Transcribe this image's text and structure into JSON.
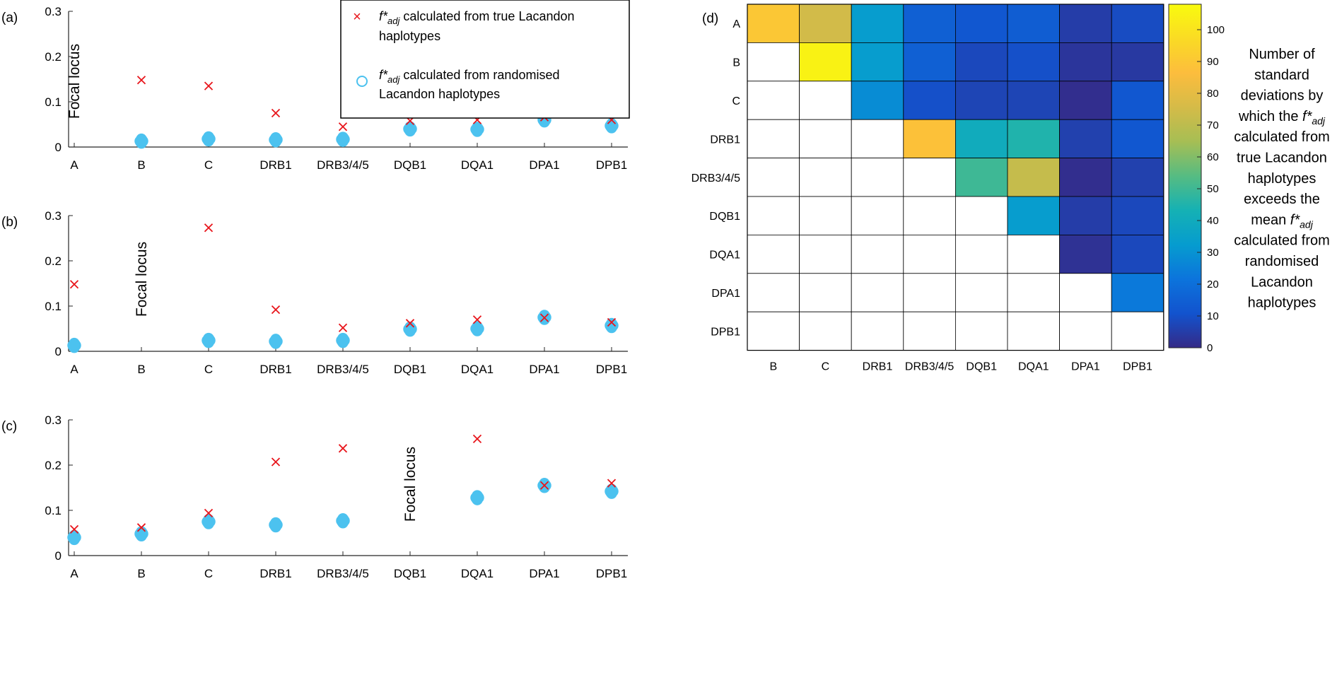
{
  "chart_data": [
    {
      "id": "a",
      "type": "scatter",
      "panel_label": "(a)",
      "focal_label": "Focal locus",
      "focal_index": 0,
      "categories": [
        "A",
        "B",
        "C",
        "DRB1",
        "DRB3/4/5",
        "DQB1",
        "DQA1",
        "DPA1",
        "DPB1"
      ],
      "ylim": [
        0,
        0.3
      ],
      "yticks": [
        "0",
        "0.1",
        "0.2",
        "0.3"
      ],
      "series": [
        {
          "name": "true",
          "marker": "x",
          "values": [
            null,
            0.148,
            0.135,
            0.075,
            0.045,
            0.058,
            0.06,
            0.066,
            0.06
          ]
        },
        {
          "name": "randomised",
          "marker": "o",
          "values": [
            null,
            0.013,
            0.018,
            0.016,
            0.017,
            0.04,
            0.039,
            0.06,
            0.047
          ]
        }
      ]
    },
    {
      "id": "b",
      "type": "scatter",
      "panel_label": "(b)",
      "focal_label": "Focal locus",
      "focal_index": 1,
      "categories": [
        "A",
        "B",
        "C",
        "DRB1",
        "DRB3/4/5",
        "DQB1",
        "DQA1",
        "DPA1",
        "DPB1"
      ],
      "ylim": [
        0,
        0.3
      ],
      "yticks": [
        "0",
        "0.1",
        "0.2",
        "0.3"
      ],
      "series": [
        {
          "name": "true",
          "marker": "x",
          "values": [
            0.148,
            null,
            0.273,
            0.092,
            0.052,
            0.062,
            0.07,
            0.074,
            0.064
          ]
        },
        {
          "name": "randomised",
          "marker": "o",
          "values": [
            0.013,
            null,
            0.024,
            0.022,
            0.024,
            0.049,
            0.05,
            0.075,
            0.057
          ]
        }
      ]
    },
    {
      "id": "c",
      "type": "scatter",
      "panel_label": "(c)",
      "focal_label": "Focal locus",
      "focal_index": 5,
      "categories": [
        "A",
        "B",
        "C",
        "DRB1",
        "DRB3/4/5",
        "DQB1",
        "DQA1",
        "DPA1",
        "DPB1"
      ],
      "ylim": [
        0,
        0.3
      ],
      "yticks": [
        "0",
        "0.1",
        "0.2",
        "0.3"
      ],
      "series": [
        {
          "name": "true",
          "marker": "x",
          "values": [
            0.058,
            0.062,
            0.094,
            0.207,
            0.237,
            null,
            0.258,
            0.155,
            0.16
          ]
        },
        {
          "name": "randomised",
          "marker": "o",
          "values": [
            0.04,
            0.048,
            0.075,
            0.068,
            0.077,
            null,
            0.128,
            0.155,
            0.142
          ]
        }
      ]
    },
    {
      "id": "d",
      "type": "heatmap",
      "panel_label": "(d)",
      "row_labels": [
        "A",
        "B",
        "C",
        "DRB1",
        "DRB3/4/5",
        "DQB1",
        "DQA1",
        "DPA1",
        "DPB1"
      ],
      "col_labels": [
        "B",
        "C",
        "DRB1",
        "DRB3/4/5",
        "DQB1",
        "DQA1",
        "DPA1",
        "DPB1"
      ],
      "values": [
        [
          90,
          75,
          33,
          15,
          12,
          14,
          5,
          9
        ],
        [
          null,
          105,
          33,
          15,
          8,
          10,
          3,
          4
        ],
        [
          null,
          null,
          28,
          10,
          7,
          7,
          1,
          12
        ],
        [
          null,
          null,
          null,
          88,
          40,
          45,
          6,
          12
        ],
        [
          null,
          null,
          null,
          null,
          50,
          72,
          1,
          6
        ],
        [
          null,
          null,
          null,
          null,
          null,
          33,
          5,
          8
        ],
        [
          null,
          null,
          null,
          null,
          null,
          null,
          2,
          8
        ],
        [
          null,
          null,
          null,
          null,
          null,
          null,
          null,
          23
        ],
        [
          null,
          null,
          null,
          null,
          null,
          null,
          null,
          null
        ]
      ],
      "colorbar": {
        "min": 0,
        "max": 108,
        "ticks": [
          0,
          10,
          20,
          30,
          40,
          50,
          60,
          70,
          80,
          90,
          100
        ],
        "label_lines": [
          "Number of",
          "standard",
          "deviations by",
          "which the f*adj",
          "calculated from",
          "true Lacandon",
          "haplotypes",
          "exceeds the",
          "mean f*adj",
          "calculated from",
          "randomised",
          "Lacandon",
          "haplotypes"
        ]
      }
    }
  ],
  "legend": {
    "entry_true": {
      "prefix": "f*",
      "subscript": "adj",
      "line1": " calculated from true Lacandon",
      "line2": "haplotypes"
    },
    "entry_random": {
      "prefix": "f*",
      "subscript": "adj",
      "line1": " calculated from randomised",
      "line2": "Lacandon haplotypes"
    }
  },
  "colors": {
    "true_marker": "#e8151b",
    "random_marker": "#4cc2ef",
    "axis": "#262626",
    "grid_border": "#000000"
  }
}
